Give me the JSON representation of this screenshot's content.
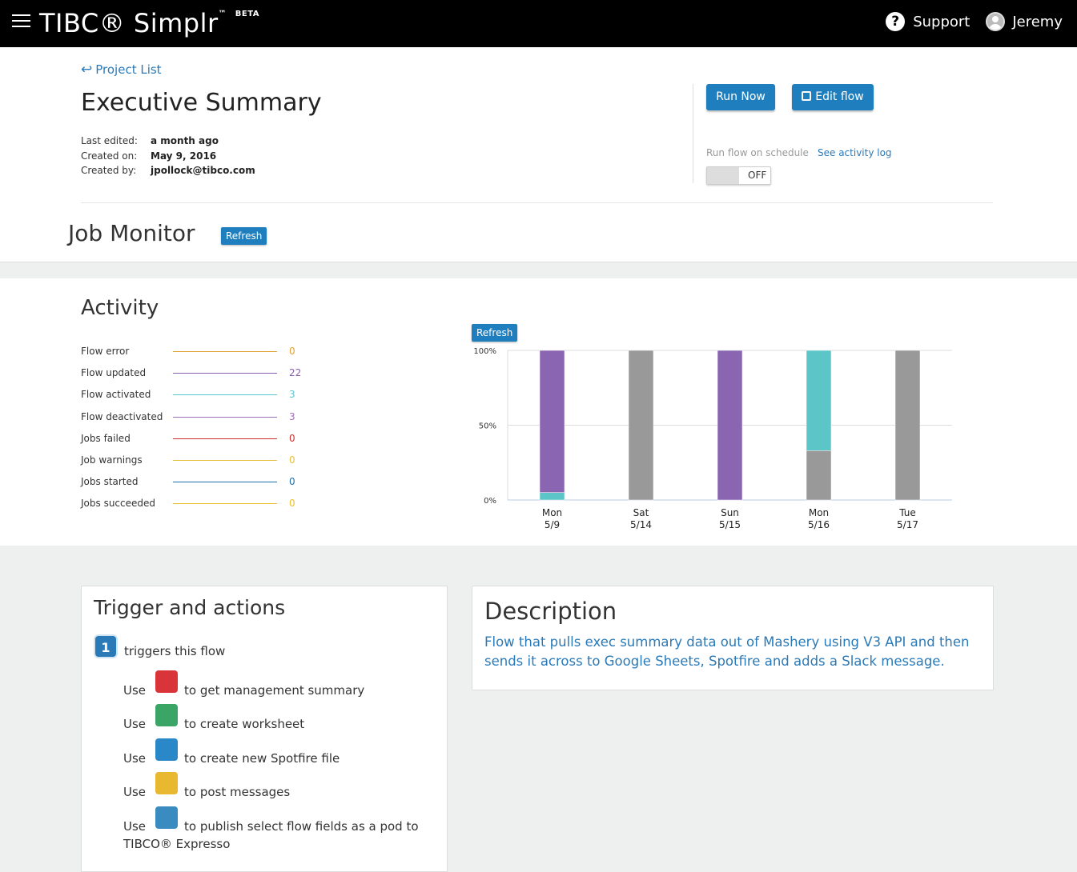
{
  "topbar": {
    "logo_text": "TIBC® Simplr",
    "logo_tm": "™",
    "logo_badge": "BETA",
    "support_label": "Support",
    "support_icon": "question-circle-icon",
    "user_name": "Jeremy",
    "user_icon": "user-avatar-icon"
  },
  "header": {
    "back_link": "Project List",
    "title": "Executive Summary",
    "meta": [
      {
        "label": "Last edited:",
        "value": "a month ago"
      },
      {
        "label": "Created on:",
        "value": "May 9, 2016"
      },
      {
        "label": "Created by:",
        "value": "jpollock@tibco.com"
      }
    ],
    "run_now_label": "Run Now",
    "edit_flow_label": "Edit flow",
    "schedule_label": "Run flow on schedule",
    "activity_log_label": "See activity log",
    "toggle_state": "OFF"
  },
  "job_monitor": {
    "title": "Job Monitor",
    "refresh_label": "Refresh"
  },
  "activity": {
    "title": "Activity",
    "refresh_label": "Refresh",
    "legend": [
      {
        "name": "Flow error",
        "value": "0",
        "color": "#e0a030"
      },
      {
        "name": "Flow updated",
        "value": "22",
        "color": "#8a5fb0"
      },
      {
        "name": "Flow activated",
        "value": "3",
        "color": "#5bc5d0"
      },
      {
        "name": "Flow deactivated",
        "value": "3",
        "color": "#a070b8"
      },
      {
        "name": "Jobs failed",
        "value": "0",
        "color": "#d03030"
      },
      {
        "name": "Job warnings",
        "value": "0",
        "color": "#e8c040"
      },
      {
        "name": "Jobs started",
        "value": "0",
        "color": "#1f6fa8"
      },
      {
        "name": "Jobs succeeded",
        "value": "0",
        "color": "#e8c030"
      }
    ]
  },
  "chart_data": {
    "type": "bar",
    "stacked": true,
    "percent": true,
    "categories": [
      {
        "day": "Mon",
        "date": "5/9"
      },
      {
        "day": "Sat",
        "date": "5/14"
      },
      {
        "day": "Sun",
        "date": "5/15"
      },
      {
        "day": "Mon",
        "date": "5/16"
      },
      {
        "day": "Tue",
        "date": "5/17"
      }
    ],
    "series": [
      {
        "color": "#999999",
        "values": [
          0,
          100,
          0,
          33,
          100
        ]
      },
      {
        "color": "#5bc5c8",
        "values": [
          5,
          0,
          0,
          67,
          0
        ]
      },
      {
        "color": "#8a65b2",
        "values": [
          95,
          0,
          100,
          0,
          0
        ]
      }
    ],
    "yticks": [
      "0%",
      "50%",
      "100%"
    ],
    "ylim": [
      0,
      100
    ],
    "grid": true
  },
  "trigger_card": {
    "title": "Trigger and actions",
    "trigger_icon": "trigger-clock-icon",
    "trigger_icon_text": "1",
    "trigger_text": "triggers this flow",
    "actions": [
      {
        "use": "Use",
        "icon": "mashery-icon",
        "color": "#d9343a",
        "text": "to get management summary"
      },
      {
        "use": "Use",
        "icon": "google-sheets-icon",
        "color": "#3aa564",
        "text": "to create worksheet"
      },
      {
        "use": "Use",
        "icon": "spotfire-icon",
        "color": "#2a88c8",
        "text": "to create new Spotfire file"
      },
      {
        "use": "Use",
        "icon": "slack-icon",
        "color": "#e8b830",
        "text": "to post messages"
      },
      {
        "use": "Use",
        "icon": "expresso-icon",
        "color": "#3a8cc0",
        "text": "to publish select flow fields as a pod to",
        "text2": "TIBCO® Expresso"
      }
    ]
  },
  "description_card": {
    "title": "Description",
    "text": "Flow that pulls exec summary data out of Mashery using V3 API and then sends it across to Google Sheets, Spotfire and adds a Slack message."
  }
}
